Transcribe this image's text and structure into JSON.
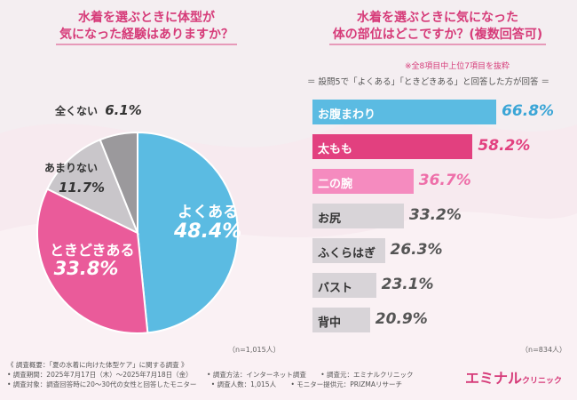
{
  "left_panel": {
    "title_line1": "水着を選ぶときに体型が",
    "title_line2": "気になった経験はありますか？",
    "n_label": "（n=1,015人）"
  },
  "right_panel": {
    "title_line1": "水着を選ぶときに気になった",
    "title_line2": "体の部位はどこですか？(複数回答可)",
    "note1": "※全8項目中上位7項目を抜粋",
    "note2": "＝ 設問5で「よくある」「ときどきある」と回答した方が回答 ＝",
    "n_label": "（n=834人）"
  },
  "chart_data": [
    {
      "type": "pie",
      "style": "donut",
      "title": "水着を選ぶときに体型が気になった経験はありますか？",
      "slices": [
        {
          "label": "よくある",
          "value": 48.4,
          "value_text": "48.4%",
          "color": "#5bbbe2"
        },
        {
          "label": "ときどきある",
          "value": 33.8,
          "value_text": "33.8%",
          "color": "#ea5b9a"
        },
        {
          "label": "あまりない",
          "value": 11.7,
          "value_text": "11.7%",
          "color": "#c9c6ca"
        },
        {
          "label": "全くない",
          "value": 6.1,
          "value_text": "6.1%",
          "color": "#9b999c"
        }
      ]
    },
    {
      "type": "bar",
      "orientation": "horizontal",
      "title": "水着を選ぶときに気になった体の部位はどこですか？(複数回答可)",
      "categories": [
        "お腹まわり",
        "太もも",
        "二の腕",
        "お尻",
        "ふくらはぎ",
        "バスト",
        "背中"
      ],
      "values": [
        66.8,
        58.2,
        36.7,
        33.2,
        26.3,
        23.1,
        20.9
      ],
      "value_texts": [
        "66.8%",
        "58.2%",
        "36.7%",
        "33.2%",
        "26.3%",
        "23.1%",
        "20.9%"
      ],
      "colors": [
        "#5bbbe2",
        "#e2407f",
        "#f58bbf",
        "#d8d4d8",
        "#d8d4d8",
        "#d8d4d8",
        "#d8d4d8"
      ],
      "label_colors": [
        "#ffffff",
        "#ffffff",
        "#ffffff",
        "#333333",
        "#333333",
        "#333333",
        "#333333"
      ],
      "value_colors": [
        "#3aa5d6",
        "#e2407f",
        "#ee6fa9",
        "#555555",
        "#555555",
        "#555555",
        "#555555"
      ],
      "xlim": [
        0,
        100
      ]
    }
  ],
  "footer": {
    "line1": "《 調査概要：「夏の水着に向けた体型ケア」に関する調査 》",
    "line2a": "• 調査期間：2025年7月17日（木）〜2025年7月18日（金）",
    "line2b": "• 調査方法：インターネット調査",
    "line2c": "• 調査元：エミナルクリニック",
    "line3a": "• 調査対象：調査回答時に20〜30代の女性と回答したモニター",
    "line3b": "• 調査人数：1,015人",
    "line3c": "• モニター提供元：PRIZMAリサーチ"
  },
  "logo": {
    "main": "エミナル",
    "sub": "クリニック"
  }
}
